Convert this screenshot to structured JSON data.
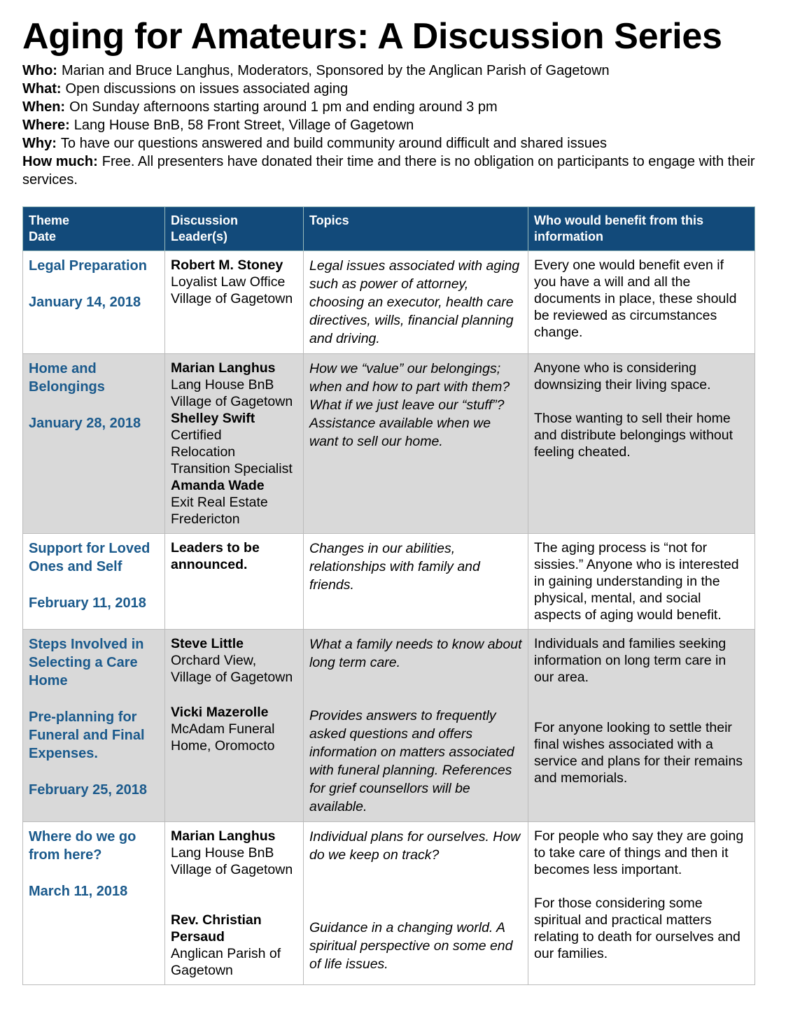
{
  "title": "Aging for Amateurs: A Discussion Series",
  "details": [
    {
      "label": "Who:",
      "text": "Marian and Bruce Langhus, Moderators, Sponsored by the Anglican Parish of Gagetown"
    },
    {
      "label": "What:",
      "text": "Open discussions on issues associated aging"
    },
    {
      "label": "When:",
      "text": "On Sunday afternoons starting around 1 pm and ending around 3 pm"
    },
    {
      "label": "Where:",
      "text": "Lang House BnB, 58 Front Street, Village of Gagetown"
    },
    {
      "label": "Why:",
      "text": "To have our questions answered and build community around difficult and shared issues"
    },
    {
      "label": "How much:",
      "text": "Free. All presenters have donated their time and there is no obligation on participants to engage with their services."
    }
  ],
  "table": {
    "headers": [
      [
        "Theme",
        "Date"
      ],
      [
        "Discussion",
        "Leader(s)"
      ],
      [
        "Topics"
      ],
      [
        "Who would benefit from this information"
      ]
    ],
    "rows": [
      {
        "themes": [
          "Legal Preparation"
        ],
        "date": "January 14, 2018",
        "leaders": [
          [
            {
              "name": "Robert M. Stoney",
              "lines": [
                "Loyalist Law Office",
                "Village of Gagetown"
              ]
            }
          ]
        ],
        "topics": [
          "Legal issues associated with aging such as power of attorney, choosing an executor, health care directives, wills, financial planning and driving."
        ],
        "benefit": [
          "Every one would benefit even if you have a will and all the documents in place, these should be reviewed as circumstances change."
        ]
      },
      {
        "themes": [
          "Home and Belongings"
        ],
        "date": "January 28, 2018",
        "leaders": [
          [
            {
              "name": "Marian Langhus",
              "lines": [
                "Lang House BnB",
                "Village of Gagetown"
              ]
            },
            {
              "name": "Shelley Swift",
              "lines": [
                "Certified",
                "Relocation",
                "Transition Specialist"
              ]
            },
            {
              "name": "Amanda Wade",
              "lines": [
                "Exit Real Estate",
                "Fredericton"
              ]
            }
          ]
        ],
        "topics": [
          "How we “value” our belongings; when and how to part with them? What if we just leave our “stuff”? Assistance available when we want to sell our home."
        ],
        "benefit": [
          "Anyone who is considering downsizing their living space.",
          "Those wanting to sell their home and distribute belongings without feeling cheated."
        ]
      },
      {
        "themes": [
          "Support for Loved Ones and Self"
        ],
        "date": "February 11, 2018",
        "leaders": [
          [
            {
              "name": "Leaders to be announced.",
              "lines": []
            }
          ]
        ],
        "topics": [
          "Changes in our abilities, relationships with family and friends."
        ],
        "benefit": [
          "The aging process is “not for sissies.” Anyone who is interested in gaining understanding in the physical, mental, and social aspects of aging would benefit."
        ]
      },
      {
        "themes": [
          "Steps Involved in Selecting a Care Home",
          "Pre-planning for Funeral and Final Expenses."
        ],
        "date": "February 25, 2018",
        "leaders": [
          [
            {
              "name": "Steve Little",
              "lines": [
                "Orchard View,",
                "Village of Gagetown"
              ]
            }
          ],
          [
            {
              "name": "Vicki Mazerolle",
              "lines": [
                "McAdam Funeral Home, Oromocto"
              ]
            }
          ]
        ],
        "topics": [
          "What a family needs to know about long term care.",
          "Provides answers to frequently asked questions and offers information on matters associated with funeral planning. References for grief counsellors will be available."
        ],
        "benefit": [
          "Individuals and families seeking information on long term care in our area.",
          "For anyone looking to settle their final wishes associated with a service and plans for their remains and memorials."
        ]
      },
      {
        "themes": [
          "Where do we go from here?"
        ],
        "date": "March 11, 2018",
        "leaders": [
          [
            {
              "name": "Marian Langhus",
              "lines": [
                "Lang House BnB",
                "Village of Gagetown"
              ]
            }
          ],
          [
            {
              "name": "Rev. Christian Persaud",
              "lines": [
                "Anglican Parish of Gagetown"
              ]
            }
          ]
        ],
        "topics": [
          "Individual plans for ourselves. How do we keep on track?",
          "Guidance in a changing world. A spiritual perspective on some end of life issues."
        ],
        "benefit": [
          "For people who say they are going to take care of things and then it becomes less important.",
          "For those considering some spiritual and practical matters relating to death for ourselves and our families."
        ]
      }
    ]
  }
}
